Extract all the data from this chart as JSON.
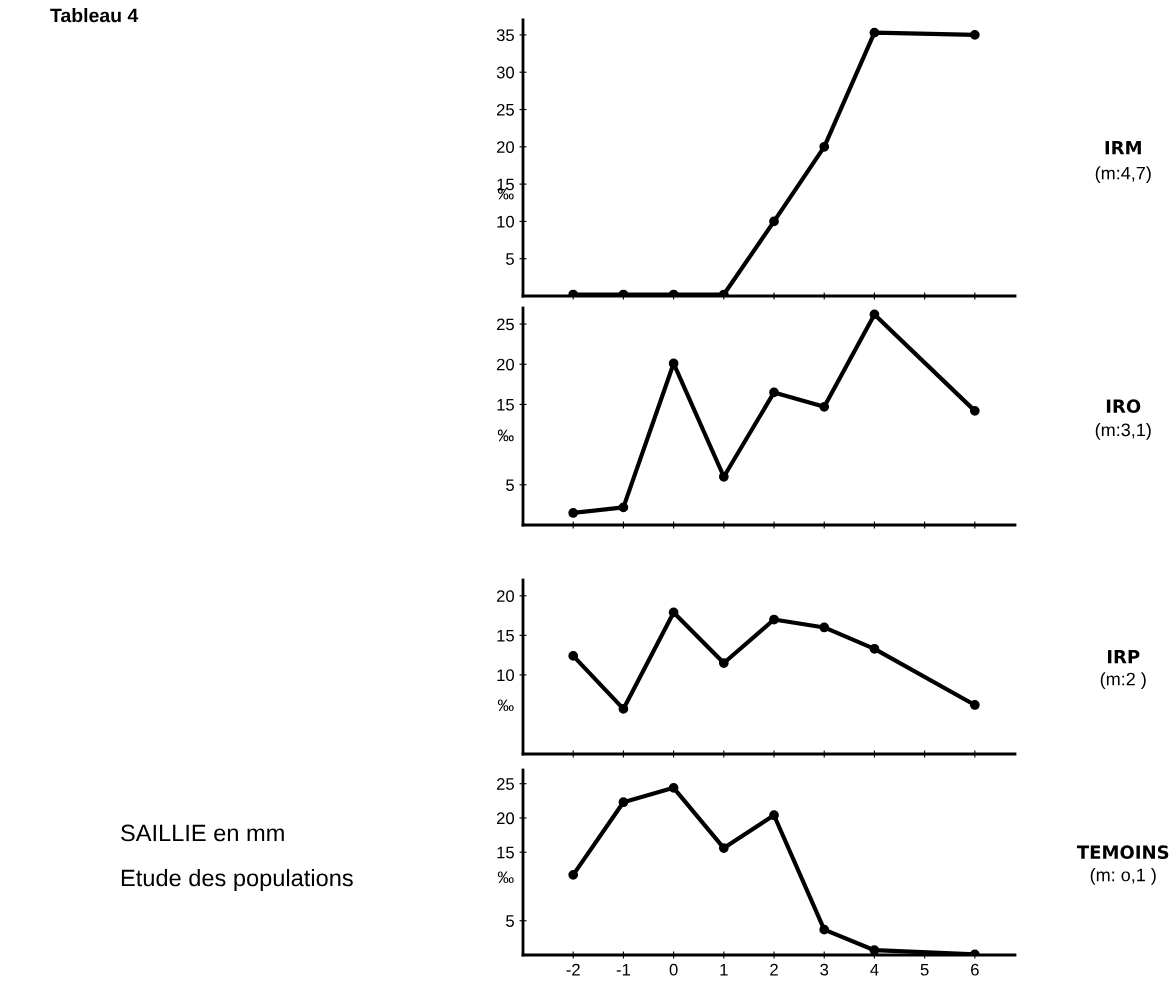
{
  "chart_data": [
    {
      "type": "line",
      "annotations": [
        "Tableau 4",
        "(m:4,7)"
      ],
      "ylabel": "‰",
      "x": [
        -2,
        -1,
        0,
        1,
        2,
        3,
        4,
        6
      ],
      "xlim": [
        -3,
        6.8
      ],
      "xticks": [
        -2,
        -1,
        0,
        1,
        2,
        3,
        4,
        5,
        6
      ],
      "ylim": [
        0,
        37
      ],
      "yticks": [
        5,
        10,
        15,
        20,
        25,
        30,
        35
      ],
      "tick_labels": "y",
      "marker": "circle",
      "line_style": "solid",
      "series": [
        {
          "name": "IRM",
          "color": "#000000",
          "values": [
            0.2,
            0.2,
            0.2,
            0.2,
            10,
            20,
            35.3,
            35
          ]
        }
      ]
    },
    {
      "type": "line",
      "annotations": [
        "(m:3,1)"
      ],
      "ylabel": "‰",
      "x": [
        -2,
        -1,
        0,
        1,
        2,
        3,
        4,
        6
      ],
      "xlim": [
        -3,
        6.8
      ],
      "xticks": [
        -2,
        -1,
        0,
        1,
        2,
        3,
        4,
        5,
        6
      ],
      "ylim": [
        0,
        27
      ],
      "yticks": [
        5,
        15,
        20,
        25
      ],
      "tick_labels": "y",
      "marker": "circle",
      "line_style": "solid",
      "series": [
        {
          "name": "IRO",
          "color": "#000000",
          "values": [
            1.5,
            2.2,
            20.1,
            6,
            16.5,
            14.7,
            26.2,
            14.2
          ]
        }
      ]
    },
    {
      "type": "line",
      "annotations": [
        "(m:2 )"
      ],
      "ylabel": "‰",
      "x": [
        -2,
        -1,
        0,
        1,
        2,
        3,
        4,
        6
      ],
      "xlim": [
        -3,
        6.8
      ],
      "xticks": [
        -2,
        -1,
        0,
        1,
        2,
        3,
        4,
        5,
        6
      ],
      "ylim": [
        0,
        22
      ],
      "yticks": [
        10,
        15,
        20
      ],
      "tick_labels": "y",
      "marker": "circle",
      "line_style": "solid",
      "series": [
        {
          "name": "IRP",
          "color": "#000000",
          "values": [
            12.4,
            5.7,
            17.9,
            11.5,
            17,
            16,
            13.3,
            6.2
          ]
        }
      ]
    },
    {
      "type": "line",
      "ylabel": "‰",
      "x": [
        -2,
        -1,
        0,
        1,
        2,
        3,
        4,
        6
      ],
      "xlim": [
        -3,
        6.8
      ],
      "xticks": [
        -2,
        -1,
        0,
        1,
        2,
        3,
        4,
        5,
        6
      ],
      "ylim": [
        0,
        27
      ],
      "yticks": [
        5,
        15,
        20,
        25
      ],
      "marker": "circle",
      "line_style": "solid",
      "annotations": [
        "(m: o,1 )",
        "SAILLIE en mm",
        "Etude des populations"
      ],
      "series": [
        {
          "name": "TEMOINS",
          "color": "#000000",
          "values": [
            11.7,
            22.3,
            24.4,
            15.6,
            20.4,
            3.7,
            0.7,
            0.1
          ]
        }
      ]
    }
  ]
}
